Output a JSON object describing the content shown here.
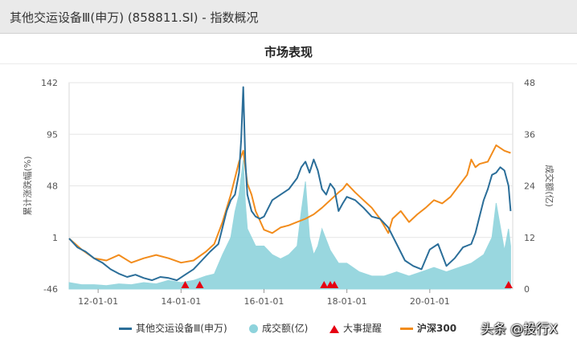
{
  "header": {
    "title": "其他交运设备Ⅲ(申万) (858811.SI) - 指数概况"
  },
  "section": {
    "title": "市场表现"
  },
  "watermark": "头条 @投行X",
  "colors": {
    "index_line": "#2b6e99",
    "volume_fill": "#8ed3dc",
    "event_marker": "#e60012",
    "hs300_line": "#f28c1c",
    "grid": "#e6e6e6"
  },
  "chart_data": {
    "type": "line",
    "title": "市场表现",
    "y_left": {
      "label": "累计涨跌幅(%)",
      "min": -46,
      "max": 142,
      "ticks": [
        "-46",
        "1",
        "48",
        "95",
        "142"
      ]
    },
    "y_right": {
      "label": "成交额(亿)",
      "min": 0,
      "max": 48,
      "ticks": [
        "0",
        "12",
        "24",
        "36",
        "48"
      ]
    },
    "x_range": [
      2011.3,
      2022.0
    ],
    "x_ticks": [
      {
        "label": "12-01-01",
        "x": 2012.0
      },
      {
        "label": "14-01-01",
        "x": 2014.0
      },
      {
        "label": "16-01-01",
        "x": 2016.0
      },
      {
        "label": "18-01-01",
        "x": 2018.0
      },
      {
        "label": "20-01-01",
        "x": 2020.0
      }
    ],
    "legend": [
      {
        "key": "index",
        "label": "其他交运设备Ⅲ(申万)"
      },
      {
        "key": "volume",
        "label": "成交额(亿)"
      },
      {
        "key": "events",
        "label": "大事提醒"
      },
      {
        "key": "hs300",
        "label": "沪深300"
      }
    ],
    "legend_position": "bottom",
    "series": [
      {
        "name": "其他交运设备Ⅲ(申万)",
        "axis": "left",
        "x": [
          2011.3,
          2011.5,
          2011.7,
          2011.9,
          2012.1,
          2012.3,
          2012.5,
          2012.7,
          2012.9,
          2013.1,
          2013.3,
          2013.5,
          2013.7,
          2013.9,
          2014.1,
          2014.3,
          2014.5,
          2014.7,
          2014.9,
          2015.0,
          2015.1,
          2015.2,
          2015.3,
          2015.4,
          2015.45,
          2015.5,
          2015.55,
          2015.6,
          2015.7,
          2015.8,
          2015.9,
          2016.0,
          2016.2,
          2016.4,
          2016.6,
          2016.8,
          2016.9,
          2017.0,
          2017.1,
          2017.2,
          2017.3,
          2017.4,
          2017.5,
          2017.6,
          2017.7,
          2017.8,
          2017.9,
          2018.0,
          2018.2,
          2018.4,
          2018.6,
          2018.8,
          2019.0,
          2019.2,
          2019.4,
          2019.6,
          2019.8,
          2020.0,
          2020.2,
          2020.4,
          2020.6,
          2020.8,
          2021.0,
          2021.1,
          2021.2,
          2021.3,
          2021.4,
          2021.5,
          2021.6,
          2021.7,
          2021.8,
          2021.9,
          2021.95
        ],
        "y": [
          0,
          -8,
          -12,
          -18,
          -22,
          -28,
          -32,
          -35,
          -33,
          -36,
          -38,
          -35,
          -36,
          -38,
          -33,
          -28,
          -20,
          -12,
          -5,
          10,
          25,
          35,
          40,
          60,
          90,
          138,
          70,
          40,
          25,
          20,
          18,
          20,
          35,
          40,
          45,
          55,
          65,
          70,
          60,
          72,
          62,
          45,
          40,
          50,
          45,
          25,
          32,
          38,
          35,
          28,
          20,
          18,
          10,
          -5,
          -20,
          -25,
          -28,
          -10,
          -5,
          -25,
          -18,
          -8,
          -5,
          5,
          20,
          35,
          45,
          58,
          60,
          65,
          62,
          48,
          25
        ]
      },
      {
        "name": "沪深300",
        "axis": "left",
        "x": [
          2011.3,
          2011.6,
          2011.9,
          2012.2,
          2012.5,
          2012.8,
          2013.1,
          2013.4,
          2013.7,
          2014.0,
          2014.3,
          2014.6,
          2014.8,
          2015.0,
          2015.2,
          2015.4,
          2015.5,
          2015.6,
          2015.7,
          2015.8,
          2016.0,
          2016.2,
          2016.4,
          2016.6,
          2016.8,
          2017.0,
          2017.2,
          2017.4,
          2017.6,
          2017.8,
          2017.9,
          2018.0,
          2018.2,
          2018.4,
          2018.6,
          2018.8,
          2019.0,
          2019.1,
          2019.3,
          2019.5,
          2019.7,
          2019.9,
          2020.1,
          2020.3,
          2020.5,
          2020.7,
          2020.9,
          2021.0,
          2021.1,
          2021.2,
          2021.4,
          2021.6,
          2021.8,
          2021.95
        ],
        "y": [
          0,
          -10,
          -18,
          -20,
          -15,
          -22,
          -18,
          -15,
          -18,
          -22,
          -20,
          -12,
          -5,
          15,
          40,
          70,
          80,
          50,
          40,
          25,
          8,
          5,
          10,
          12,
          15,
          18,
          22,
          28,
          35,
          42,
          45,
          50,
          42,
          35,
          28,
          18,
          5,
          18,
          25,
          15,
          22,
          28,
          35,
          32,
          38,
          48,
          58,
          72,
          65,
          68,
          70,
          85,
          80,
          78
        ]
      },
      {
        "name": "成交额(亿)",
        "axis": "right",
        "x": [
          2011.3,
          2011.6,
          2011.9,
          2012.2,
          2012.5,
          2012.8,
          2013.1,
          2013.4,
          2013.7,
          2014.0,
          2014.3,
          2014.6,
          2014.8,
          2015.0,
          2015.2,
          2015.3,
          2015.4,
          2015.5,
          2015.55,
          2015.6,
          2015.7,
          2015.8,
          2016.0,
          2016.2,
          2016.4,
          2016.6,
          2016.8,
          2016.9,
          2017.0,
          2017.1,
          2017.2,
          2017.3,
          2017.4,
          2017.6,
          2017.8,
          2018.0,
          2018.3,
          2018.6,
          2018.9,
          2019.2,
          2019.5,
          2019.8,
          2020.1,
          2020.4,
          2020.7,
          2021.0,
          2021.3,
          2021.5,
          2021.6,
          2021.8,
          2021.9,
          2021.95
        ],
        "y": [
          1.5,
          1,
          1,
          0.8,
          1.2,
          1,
          1.5,
          1.2,
          2,
          1.5,
          2,
          3,
          3.5,
          8,
          12,
          18,
          22,
          30,
          20,
          14,
          12,
          10,
          10,
          8,
          7,
          8,
          10,
          18,
          25,
          12,
          8,
          10,
          14,
          9,
          6,
          6,
          4,
          3,
          3,
          4,
          3,
          4,
          5,
          4,
          5,
          6,
          8,
          12,
          20,
          9,
          14,
          10
        ]
      }
    ],
    "events": [
      2014.1,
      2014.45,
      2017.45,
      2017.6,
      2017.7,
      2021.9
    ]
  }
}
